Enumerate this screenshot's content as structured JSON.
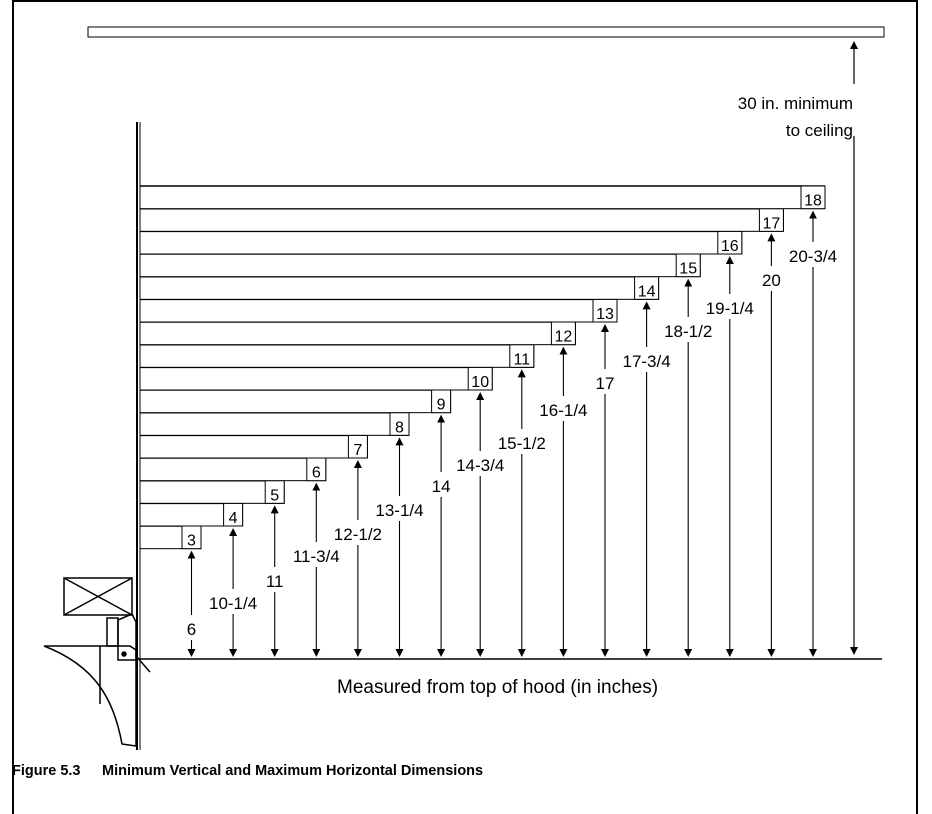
{
  "figure": {
    "number": "Figure 5.3",
    "title": "Minimum Vertical and Maximum Horizontal Dimensions"
  },
  "ceiling_note": [
    "30 in. minimum",
    "to ceiling"
  ],
  "baseline_note": "Measured from top of hood (in inches)",
  "pairs": [
    {
      "horizontal": "3",
      "vertical": "6"
    },
    {
      "horizontal": "4",
      "vertical": "10-1/4"
    },
    {
      "horizontal": "5",
      "vertical": "11"
    },
    {
      "horizontal": "6",
      "vertical": "11-3/4"
    },
    {
      "horizontal": "7",
      "vertical": "12-1/2"
    },
    {
      "horizontal": "8",
      "vertical": "13-1/4"
    },
    {
      "horizontal": "9",
      "vertical": "14"
    },
    {
      "horizontal": "10",
      "vertical": "14-3/4"
    },
    {
      "horizontal": "11",
      "vertical": "15-1/2"
    },
    {
      "horizontal": "12",
      "vertical": "16-1/4"
    },
    {
      "horizontal": "13",
      "vertical": "17"
    },
    {
      "horizontal": "14",
      "vertical": "17-3/4"
    },
    {
      "horizontal": "15",
      "vertical": "18-1/2"
    },
    {
      "horizontal": "16",
      "vertical": "19-1/4"
    },
    {
      "horizontal": "17",
      "vertical": "20"
    },
    {
      "horizontal": "18",
      "vertical": "20-3/4"
    }
  ]
}
